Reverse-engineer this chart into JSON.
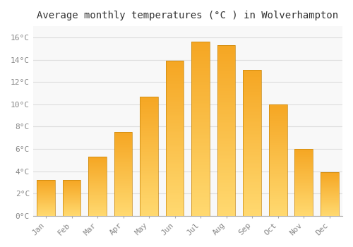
{
  "title": "Average monthly temperatures (°C ) in Wolverhampton",
  "months": [
    "Jan",
    "Feb",
    "Mar",
    "Apr",
    "May",
    "Jun",
    "Jul",
    "Aug",
    "Sep",
    "Oct",
    "Nov",
    "Dec"
  ],
  "values": [
    3.2,
    3.2,
    5.3,
    7.5,
    10.7,
    13.9,
    15.6,
    15.3,
    13.1,
    10.0,
    6.0,
    3.9
  ],
  "bar_color_top": "#F5A623",
  "bar_color_bottom": "#FFD970",
  "bar_edge_color": "#C8860A",
  "ylim": [
    0,
    17
  ],
  "yticks": [
    0,
    2,
    4,
    6,
    8,
    10,
    12,
    14,
    16
  ],
  "ytick_labels": [
    "0°C",
    "2°C",
    "4°C",
    "6°C",
    "8°C",
    "10°C",
    "12°C",
    "14°C",
    "16°C"
  ],
  "background_color": "#FFFFFF",
  "plot_bg_color": "#F8F8F8",
  "grid_color": "#DDDDDD",
  "title_fontsize": 10,
  "tick_fontsize": 8,
  "font_family": "monospace"
}
